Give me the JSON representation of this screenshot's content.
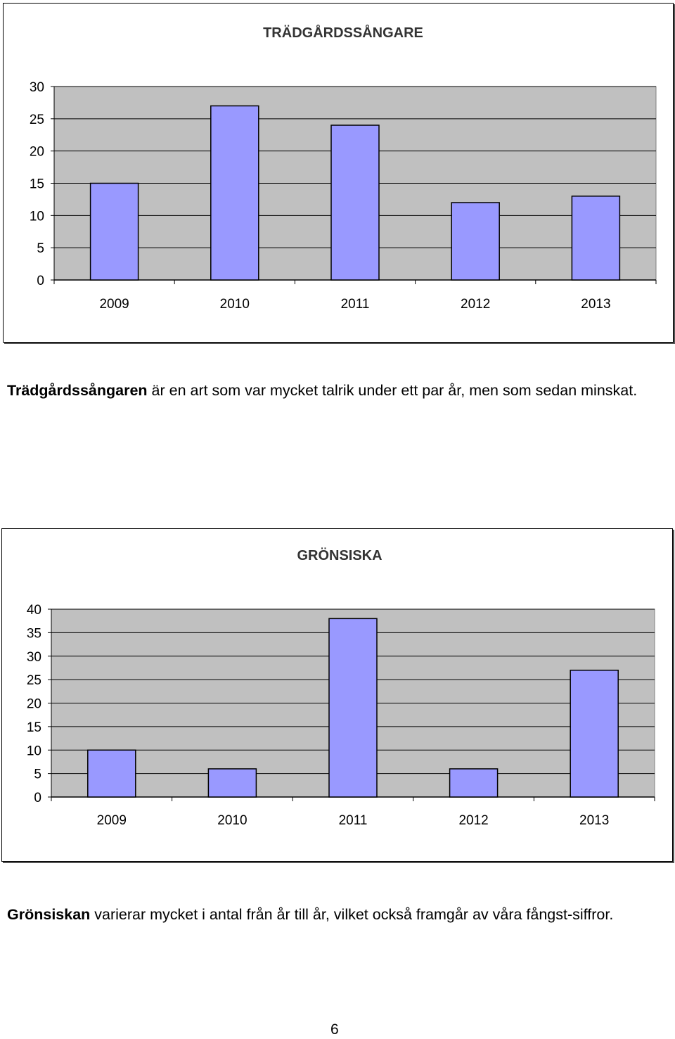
{
  "chart_data": [
    {
      "type": "bar",
      "title": "TRÄDGÅRDSSÅNGARE",
      "categories": [
        "2009",
        "2010",
        "2011",
        "2012",
        "2013"
      ],
      "values": [
        15,
        27,
        24,
        12,
        13
      ],
      "ylim": [
        0,
        30
      ],
      "yticks": [
        "0",
        "5",
        "10",
        "15",
        "20",
        "25",
        "30"
      ],
      "grid": true,
      "legend": "none",
      "bar_color": "#9999ff",
      "plot_background": "#c0c0c0"
    },
    {
      "type": "bar",
      "title": "GRÖNSISKA",
      "categories": [
        "2009",
        "2010",
        "2011",
        "2012",
        "2013"
      ],
      "values": [
        10,
        6,
        38,
        6,
        27
      ],
      "ylim": [
        0,
        40
      ],
      "yticks": [
        "0",
        "5",
        "10",
        "15",
        "20",
        "25",
        "30",
        "35",
        "40"
      ],
      "grid": true,
      "legend": "none",
      "bar_color": "#9999ff",
      "plot_background": "#c0c0c0"
    }
  ],
  "text": {
    "para1_bold": "Trädgårdssångaren",
    "para1_rest": " är en art som var mycket talrik under ett par år, men som sedan minskat.",
    "para2_bold": "Grönsiskan",
    "para2_rest": " varierar mycket i antal från år till år, vilket också framgår av våra fångst-siffror.",
    "page_number": "6"
  }
}
